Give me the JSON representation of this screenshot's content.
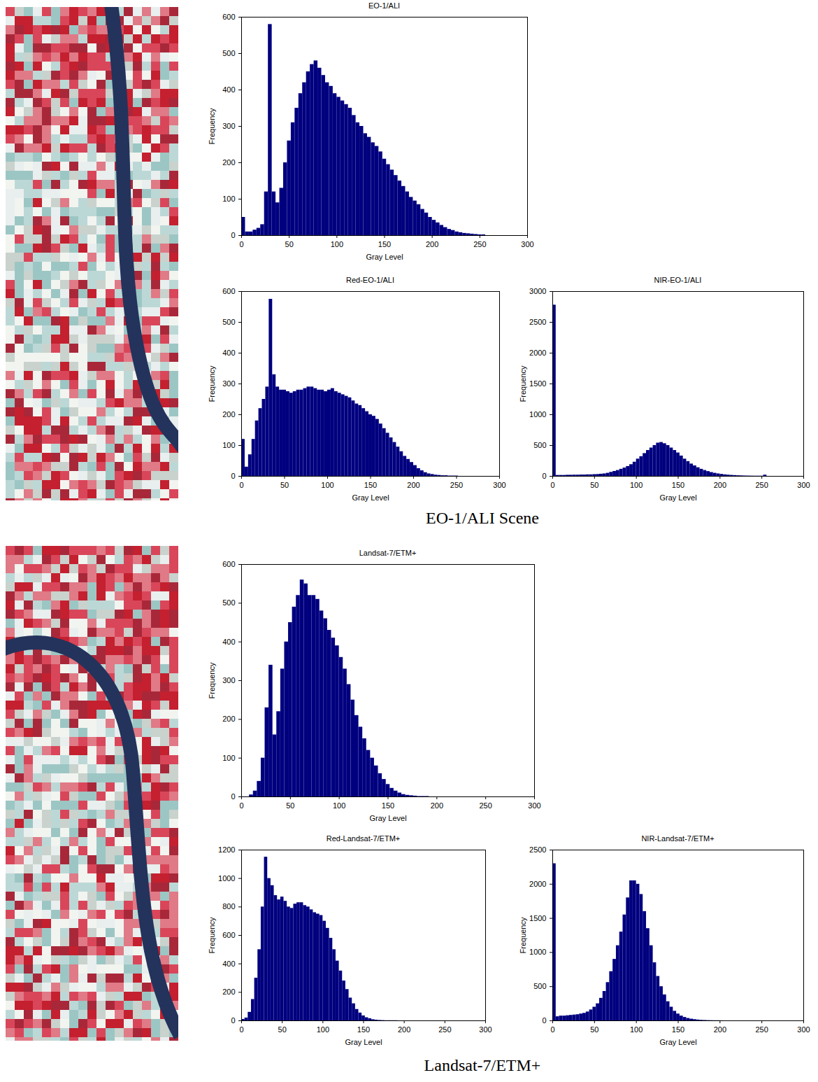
{
  "chart_data": [
    {
      "type": "histogram",
      "title": "EO-1/ALI",
      "x_label": "Gray Level",
      "y_label": "Frequency",
      "color": "#00007f",
      "bins": [
        0,
        4,
        8,
        12,
        16,
        20,
        24,
        28,
        32,
        36,
        40,
        44,
        48,
        52,
        56,
        60,
        64,
        68,
        72,
        76,
        80,
        84,
        88,
        92,
        96,
        100,
        104,
        108,
        112,
        116,
        120,
        124,
        128,
        132,
        136,
        140,
        144,
        148,
        152,
        156,
        160,
        164,
        168,
        172,
        176,
        180,
        184,
        188,
        192,
        196,
        200,
        204,
        208,
        212,
        216,
        220,
        224,
        228,
        232,
        236,
        240,
        244,
        248,
        252,
        256
      ],
      "values": [
        50,
        10,
        10,
        15,
        20,
        30,
        120,
        580,
        120,
        90,
        130,
        200,
        260,
        310,
        350,
        390,
        420,
        450,
        470,
        480,
        460,
        440,
        420,
        410,
        390,
        380,
        370,
        360,
        350,
        330,
        310,
        300,
        280,
        270,
        255,
        245,
        230,
        210,
        195,
        180,
        165,
        150,
        135,
        120,
        105,
        95,
        85,
        72,
        62,
        50,
        42,
        35,
        28,
        22,
        17,
        14,
        10,
        8,
        6,
        5,
        4,
        3,
        2,
        2
      ],
      "xlim": [
        0,
        300
      ],
      "xticks": [
        0,
        50,
        100,
        150,
        200,
        250,
        300
      ],
      "ylim": [
        0,
        600
      ],
      "yticks": [
        0,
        100,
        200,
        300,
        400,
        500,
        600
      ]
    },
    {
      "type": "histogram",
      "title": "Red-EO-1/ALI",
      "x_label": "Gray Level",
      "y_label": "Frequency",
      "color": "#00007f",
      "bins": [
        0,
        4,
        8,
        12,
        16,
        20,
        24,
        28,
        32,
        36,
        40,
        44,
        48,
        52,
        56,
        60,
        64,
        68,
        72,
        76,
        80,
        84,
        88,
        92,
        96,
        100,
        104,
        108,
        112,
        116,
        120,
        124,
        128,
        132,
        136,
        140,
        144,
        148,
        152,
        156,
        160,
        164,
        168,
        172,
        176,
        180,
        184,
        188,
        192,
        196,
        200,
        204,
        208,
        212,
        216,
        220,
        224,
        228,
        232,
        236,
        240,
        244,
        248,
        252,
        256
      ],
      "values": [
        120,
        30,
        70,
        120,
        180,
        220,
        250,
        290,
        575,
        330,
        290,
        280,
        280,
        275,
        270,
        275,
        280,
        280,
        285,
        290,
        290,
        285,
        280,
        280,
        275,
        280,
        285,
        275,
        270,
        265,
        260,
        255,
        245,
        235,
        230,
        220,
        210,
        200,
        195,
        185,
        170,
        155,
        140,
        125,
        110,
        95,
        80,
        65,
        55,
        45,
        35,
        25,
        18,
        12,
        8,
        6,
        4,
        3,
        2,
        2,
        1,
        1,
        1,
        0
      ],
      "xlim": [
        0,
        300
      ],
      "xticks": [
        0,
        50,
        100,
        150,
        200,
        250,
        300
      ],
      "ylim": [
        0,
        600
      ],
      "yticks": [
        0,
        100,
        200,
        300,
        400,
        500,
        600
      ]
    },
    {
      "type": "histogram",
      "title": "NIR-EO-1/ALI",
      "x_label": "Gray Level",
      "y_label": "Frequency",
      "color": "#00007f",
      "bins": [
        0,
        4,
        8,
        12,
        16,
        20,
        24,
        28,
        32,
        36,
        40,
        44,
        48,
        52,
        56,
        60,
        64,
        68,
        72,
        76,
        80,
        84,
        88,
        92,
        96,
        100,
        104,
        108,
        112,
        116,
        120,
        124,
        128,
        132,
        136,
        140,
        144,
        148,
        152,
        156,
        160,
        164,
        168,
        172,
        176,
        180,
        184,
        188,
        192,
        196,
        200,
        204,
        208,
        212,
        216,
        220,
        224,
        228,
        232,
        236,
        240,
        244,
        248,
        252,
        256
      ],
      "values": [
        2780,
        15,
        15,
        15,
        18,
        18,
        20,
        20,
        22,
        22,
        25,
        25,
        28,
        30,
        35,
        40,
        50,
        65,
        80,
        95,
        115,
        135,
        160,
        190,
        230,
        280,
        320,
        370,
        420,
        460,
        500,
        540,
        550,
        530,
        500,
        460,
        420,
        380,
        330,
        280,
        240,
        200,
        170,
        140,
        115,
        95,
        78,
        62,
        50,
        40,
        32,
        25,
        20,
        16,
        13,
        10,
        8,
        6,
        5,
        4,
        3,
        3,
        3,
        20
      ],
      "xlim": [
        0,
        300
      ],
      "xticks": [
        0,
        50,
        100,
        150,
        200,
        250,
        300
      ],
      "ylim": [
        0,
        3000
      ],
      "yticks": [
        0,
        500,
        1000,
        1500,
        2000,
        2500,
        3000
      ]
    },
    {
      "type": "histogram",
      "title": "Landsat-7/ETM+",
      "x_label": "Gray Level",
      "y_label": "Frequency",
      "color": "#00007f",
      "bins": [
        0,
        4,
        8,
        12,
        16,
        20,
        24,
        28,
        32,
        36,
        40,
        44,
        48,
        52,
        56,
        60,
        64,
        68,
        72,
        76,
        80,
        84,
        88,
        92,
        96,
        100,
        104,
        108,
        112,
        116,
        120,
        124,
        128,
        132,
        136,
        140,
        144,
        148,
        152,
        156,
        160,
        164,
        168,
        172,
        176,
        180,
        184,
        188,
        192,
        196,
        200,
        204,
        208,
        212,
        216,
        220,
        224,
        228,
        232,
        236,
        240,
        244,
        248,
        252,
        256
      ],
      "values": [
        0,
        0,
        5,
        15,
        40,
        100,
        230,
        340,
        160,
        220,
        330,
        400,
        450,
        490,
        520,
        560,
        550,
        520,
        520,
        510,
        480,
        460,
        430,
        410,
        390,
        360,
        330,
        290,
        250,
        210,
        180,
        150,
        120,
        100,
        80,
        60,
        45,
        32,
        22,
        15,
        10,
        6,
        4,
        3,
        2,
        1,
        1,
        1,
        0,
        0,
        0,
        0,
        0,
        0,
        0,
        0,
        0,
        0,
        0,
        0,
        0,
        0,
        0,
        0
      ],
      "xlim": [
        0,
        300
      ],
      "xticks": [
        0,
        50,
        100,
        150,
        200,
        250,
        300
      ],
      "ylim": [
        0,
        600
      ],
      "yticks": [
        0,
        100,
        200,
        300,
        400,
        500,
        600
      ]
    },
    {
      "type": "histogram",
      "title": "Red-Landsat-7/ETM+",
      "x_label": "Gray Level",
      "y_label": "Frequency",
      "color": "#00007f",
      "bins": [
        0,
        4,
        8,
        12,
        16,
        20,
        24,
        28,
        32,
        36,
        40,
        44,
        48,
        52,
        56,
        60,
        64,
        68,
        72,
        76,
        80,
        84,
        88,
        92,
        96,
        100,
        104,
        108,
        112,
        116,
        120,
        124,
        128,
        132,
        136,
        140,
        144,
        148,
        152,
        156,
        160,
        164,
        168,
        172,
        176,
        180,
        184,
        188,
        192,
        196,
        200,
        204,
        208,
        212,
        216,
        220,
        224,
        228,
        232,
        236,
        240,
        244,
        248,
        252,
        256
      ],
      "values": [
        10,
        20,
        60,
        150,
        300,
        500,
        800,
        1150,
        1000,
        950,
        880,
        850,
        870,
        840,
        800,
        790,
        820,
        830,
        830,
        810,
        800,
        780,
        760,
        750,
        740,
        700,
        650,
        580,
        500,
        420,
        350,
        280,
        220,
        160,
        120,
        80,
        55,
        35,
        22,
        15,
        8,
        5,
        3,
        2,
        1,
        1,
        1,
        1,
        0,
        0,
        0,
        0,
        0,
        0,
        0,
        0,
        0,
        0,
        0,
        0,
        0,
        0,
        0,
        0
      ],
      "xlim": [
        0,
        300
      ],
      "xticks": [
        0,
        50,
        100,
        150,
        200,
        250,
        300
      ],
      "ylim": [
        0,
        1200
      ],
      "yticks": [
        0,
        200,
        400,
        600,
        800,
        1000,
        1200
      ]
    },
    {
      "type": "histogram",
      "title": "NIR-Landsat-7/ETM+",
      "x_label": "Gray Level",
      "y_label": "Frequency",
      "color": "#00007f",
      "bins": [
        0,
        4,
        8,
        12,
        16,
        20,
        24,
        28,
        32,
        36,
        40,
        44,
        48,
        52,
        56,
        60,
        64,
        68,
        72,
        76,
        80,
        84,
        88,
        92,
        96,
        100,
        104,
        108,
        112,
        116,
        120,
        124,
        128,
        132,
        136,
        140,
        144,
        148,
        152,
        156,
        160,
        164,
        168,
        172,
        176,
        180,
        184,
        188,
        192,
        196,
        200,
        204,
        208,
        212,
        216,
        220,
        224,
        228,
        232,
        236,
        240,
        244,
        248,
        252,
        256
      ],
      "values": [
        2300,
        60,
        70,
        70,
        75,
        80,
        85,
        90,
        100,
        110,
        130,
        160,
        200,
        250,
        330,
        430,
        560,
        720,
        900,
        1100,
        1300,
        1550,
        1800,
        2050,
        2050,
        2000,
        1850,
        1600,
        1350,
        1100,
        850,
        650,
        500,
        380,
        280,
        200,
        140,
        100,
        70,
        50,
        35,
        25,
        18,
        12,
        8,
        6,
        4,
        3,
        2,
        2,
        1,
        0,
        0,
        0,
        0,
        0,
        0,
        0,
        0,
        0,
        0,
        0,
        0,
        0
      ],
      "xlim": [
        0,
        300
      ],
      "xticks": [
        0,
        50,
        100,
        150,
        200,
        250,
        300
      ],
      "ylim": [
        0,
        2500
      ],
      "yticks": [
        0,
        500,
        1000,
        1500,
        2000,
        2500
      ]
    }
  ],
  "captions": [
    "EO-1/ALI Scene",
    "Landsat-7/ETM+"
  ]
}
